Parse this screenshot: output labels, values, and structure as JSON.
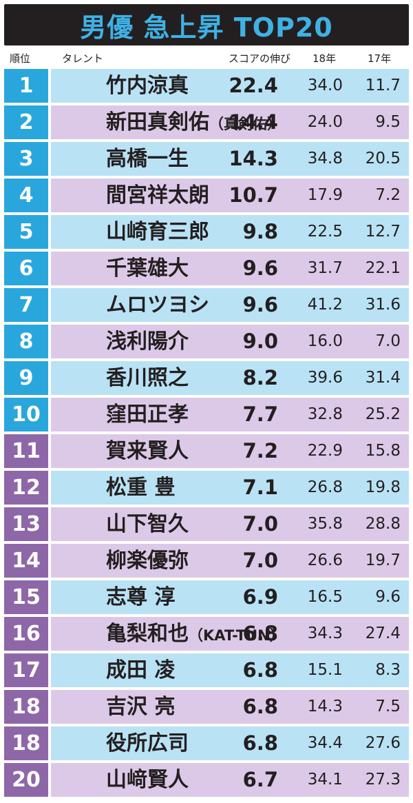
{
  "title": "男優 急上昇 TOP20",
  "colors": {
    "title_bg": "#231f20",
    "title_text": "#3fb1e5",
    "rank_blue": "#29a7dd",
    "rank_purple": "#8e67a8",
    "band_blue": "#b9e2f5",
    "band_purple": "#dcc9e7"
  },
  "chart_data": {
    "type": "table",
    "columns": [
      "順位",
      "タレント",
      "スコアの伸び",
      "18年",
      "17年"
    ],
    "rows": [
      {
        "rank": "1",
        "name": "竹内涼真",
        "sub": "",
        "growth": "22.4",
        "y18": "34.0",
        "y17": "11.7",
        "rank_color": "blue",
        "band": "blue"
      },
      {
        "rank": "2",
        "name": "新田真剣佑",
        "sub": "（真剣佑）",
        "growth": "14.4",
        "y18": "24.0",
        "y17": "9.5",
        "rank_color": "blue",
        "band": "purple"
      },
      {
        "rank": "3",
        "name": "高橋一生",
        "sub": "",
        "growth": "14.3",
        "y18": "34.8",
        "y17": "20.5",
        "rank_color": "blue",
        "band": "blue"
      },
      {
        "rank": "4",
        "name": "間宮祥太朗",
        "sub": "",
        "growth": "10.7",
        "y18": "17.9",
        "y17": "7.2",
        "rank_color": "blue",
        "band": "purple"
      },
      {
        "rank": "5",
        "name": "山崎育三郎",
        "sub": "",
        "growth": "9.8",
        "y18": "22.5",
        "y17": "12.7",
        "rank_color": "blue",
        "band": "blue"
      },
      {
        "rank": "6",
        "name": "千葉雄大",
        "sub": "",
        "growth": "9.6",
        "y18": "31.7",
        "y17": "22.1",
        "rank_color": "blue",
        "band": "purple"
      },
      {
        "rank": "7",
        "name": "ムロツヨシ",
        "sub": "",
        "growth": "9.6",
        "y18": "41.2",
        "y17": "31.6",
        "rank_color": "blue",
        "band": "blue"
      },
      {
        "rank": "8",
        "name": "浅利陽介",
        "sub": "",
        "growth": "9.0",
        "y18": "16.0",
        "y17": "7.0",
        "rank_color": "blue",
        "band": "purple"
      },
      {
        "rank": "9",
        "name": "香川照之",
        "sub": "",
        "growth": "8.2",
        "y18": "39.6",
        "y17": "31.4",
        "rank_color": "blue",
        "band": "blue"
      },
      {
        "rank": "10",
        "name": "窪田正孝",
        "sub": "",
        "growth": "7.7",
        "y18": "32.8",
        "y17": "25.2",
        "rank_color": "blue",
        "band": "purple"
      },
      {
        "rank": "11",
        "name": "賀来賢人",
        "sub": "",
        "growth": "7.2",
        "y18": "22.9",
        "y17": "15.8",
        "rank_color": "purple",
        "band": "purple"
      },
      {
        "rank": "12",
        "name": "松重 豊",
        "sub": "",
        "growth": "7.1",
        "y18": "26.8",
        "y17": "19.8",
        "rank_color": "purple",
        "band": "blue"
      },
      {
        "rank": "13",
        "name": "山下智久",
        "sub": "",
        "growth": "7.0",
        "y18": "35.8",
        "y17": "28.8",
        "rank_color": "purple",
        "band": "purple"
      },
      {
        "rank": "14",
        "name": "柳楽優弥",
        "sub": "",
        "growth": "7.0",
        "y18": "26.6",
        "y17": "19.7",
        "rank_color": "purple",
        "band": "purple"
      },
      {
        "rank": "15",
        "name": "志尊 淳",
        "sub": "",
        "growth": "6.9",
        "y18": "16.5",
        "y17": "9.6",
        "rank_color": "purple",
        "band": "blue"
      },
      {
        "rank": "16",
        "name": "亀梨和也",
        "sub": "（KAT-TUN）",
        "growth": "6.8",
        "y18": "34.3",
        "y17": "27.4",
        "rank_color": "purple",
        "band": "purple"
      },
      {
        "rank": "17",
        "name": "成田 凌",
        "sub": "",
        "growth": "6.8",
        "y18": "15.1",
        "y17": "8.3",
        "rank_color": "purple",
        "band": "blue"
      },
      {
        "rank": "18",
        "name": "吉沢 亮",
        "sub": "",
        "growth": "6.8",
        "y18": "14.3",
        "y17": "7.5",
        "rank_color": "purple",
        "band": "purple"
      },
      {
        "rank": "18",
        "name": "役所広司",
        "sub": "",
        "growth": "6.8",
        "y18": "34.4",
        "y17": "27.6",
        "rank_color": "purple",
        "band": "blue"
      },
      {
        "rank": "20",
        "name": "山﨑賢人",
        "sub": "",
        "growth": "6.7",
        "y18": "34.1",
        "y17": "27.3",
        "rank_color": "purple",
        "band": "purple"
      }
    ]
  }
}
